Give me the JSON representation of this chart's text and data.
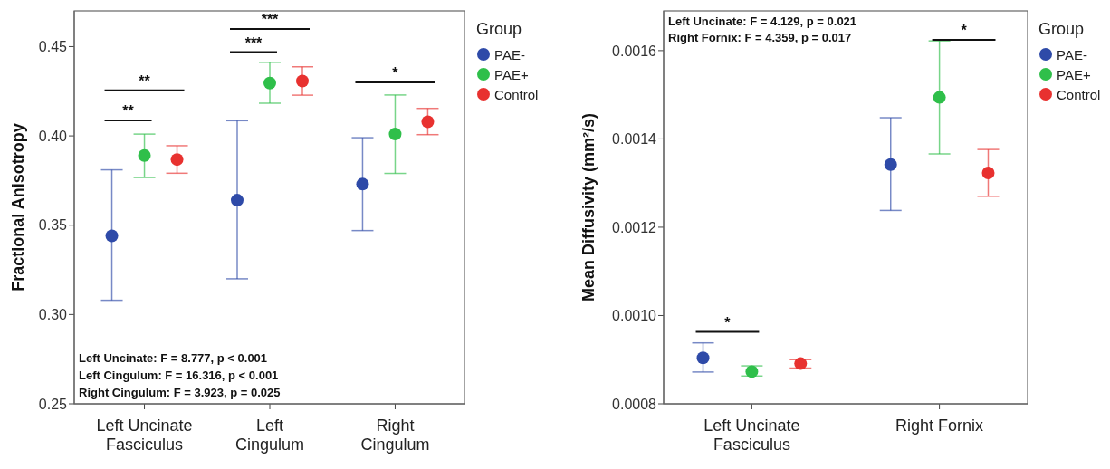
{
  "chart_data": [
    {
      "type": "scatter",
      "ylabel": "Fractional Anisotropy",
      "legend_title": "Group",
      "legend": "top right",
      "marker": "circle",
      "categories": [
        "Left Uncinate\nFasciculus",
        "Left\nCingulum",
        "Right\nCingulum"
      ],
      "ylim": [
        0.25,
        0.47
      ],
      "yticks": [
        0.25,
        {
          "value": 0.3,
          "label": "0.30"
        },
        0.35,
        {
          "value": 0.4,
          "label": "0.40"
        },
        0.45
      ],
      "series": [
        {
          "name": "PAE-",
          "color": "#2e4aa8",
          "values": [
            0.344,
            0.364,
            0.373
          ],
          "errors": [
            [
              0.308,
              0.381
            ],
            [
              0.32,
              0.4085
            ],
            [
              0.347,
              0.399
            ]
          ]
        },
        {
          "name": "PAE+",
          "color": "#2fbf4a",
          "values": [
            0.389,
            0.4296,
            0.401
          ],
          "errors": [
            [
              0.3767,
              0.401
            ],
            [
              0.4183,
              0.4412
            ],
            [
              0.379,
              0.4229
            ]
          ]
        },
        {
          "name": "Control",
          "color": "#e8312f",
          "values": [
            0.3868,
            0.4307,
            0.4079
          ],
          "errors": [
            [
              0.3791,
              0.3945
            ],
            [
              0.4228,
              0.4387
            ],
            [
              0.4007,
              0.4154
            ]
          ]
        }
      ],
      "annotations": [
        "**",
        "**",
        "***",
        "***",
        "*",
        "Left Uncinate: F = 8.777, p < 0.001",
        "Left Cingulum: F = 16.316, p < 0.001",
        "Right Cingulum: F = 3.923, p = 0.025"
      ]
    },
    {
      "type": "scatter",
      "ylabel": "Mean Diffusivity (mm²/s)",
      "legend_title": "Group",
      "legend": "top right",
      "marker": "circle",
      "categories": [
        "Left Uncinate\nFasciculus",
        "Right Fornix"
      ],
      "ylim": [
        0.0008,
        0.00169
      ],
      "yticks": [
        0.0008,
        {
          "value": 0.001,
          "label": "0.0010"
        },
        0.0012,
        0.0014,
        0.0016
      ],
      "series": [
        {
          "name": "PAE-",
          "color": "#2e4aa8",
          "values": [
            0.000904,
            0.001342
          ],
          "errors": [
            [
              0.000872,
              0.000938
            ],
            [
              0.001238,
              0.001448
            ]
          ]
        },
        {
          "name": "PAE+",
          "color": "#2fbf4a",
          "values": [
            0.000873,
            0.001494
          ],
          "errors": [
            [
              0.000863,
              0.000886
            ],
            [
              0.001366,
              0.001622
            ]
          ]
        },
        {
          "name": "Control",
          "color": "#e8312f",
          "values": [
            0.000891,
            0.001323
          ],
          "errors": [
            [
              0.000881,
              0.0009
            ],
            [
              0.00127,
              0.001376
            ]
          ]
        }
      ],
      "annotations": [
        "*",
        "*",
        "Left Uncinate: F = 4.129, p = 0.021",
        "Right Fornix: F = 4.359, p = 0.017"
      ]
    }
  ]
}
